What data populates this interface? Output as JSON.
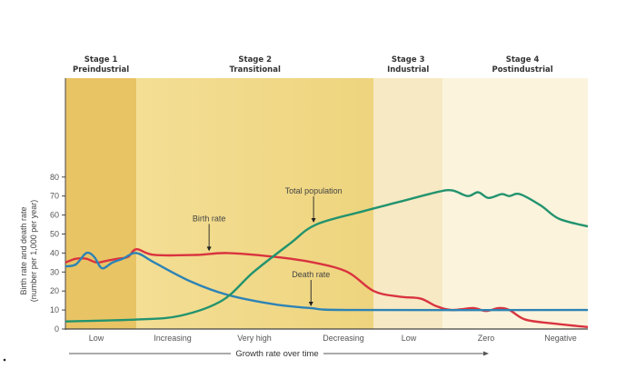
{
  "chart_data": {
    "type": "line",
    "title": "",
    "xlabel": "Growth rate over time",
    "ylabel": "Birth rate and death rate (number per 1,000 per year)",
    "ylim": [
      0,
      80
    ],
    "yticks": [
      0,
      10,
      20,
      30,
      40,
      50,
      60,
      70,
      80
    ],
    "grid": false,
    "stages": [
      {
        "title": "Stage 1",
        "name": "Preindustrial",
        "x_range": [
          0,
          13.6
        ],
        "color": "#e9c465"
      },
      {
        "title": "Stage 2",
        "name": "Transitional",
        "x_range": [
          13.6,
          59
        ],
        "color": "#f1da8c"
      },
      {
        "title": "Stage 3",
        "name": "Industrial",
        "x_range": [
          59,
          72.2
        ],
        "color": "#f6e9c3"
      },
      {
        "title": "Stage 4",
        "name": "Postindustrial",
        "x_range": [
          72.2,
          100
        ],
        "color": "#fbf3dc"
      }
    ],
    "categories": [
      "Low",
      "Increasing",
      "Very high",
      "Decreasing",
      "Low",
      "Zero",
      "Negative"
    ],
    "series": [
      {
        "name": "Birth rate",
        "color": "#d9333f",
        "points": [
          [
            0,
            35
          ],
          [
            2,
            37
          ],
          [
            4,
            37
          ],
          [
            6,
            35
          ],
          [
            8,
            36
          ],
          [
            10,
            37
          ],
          [
            12,
            38
          ],
          [
            13.6,
            42
          ],
          [
            17,
            39
          ],
          [
            25,
            39
          ],
          [
            31,
            40
          ],
          [
            40,
            38
          ],
          [
            47.5,
            35
          ],
          [
            54,
            30
          ],
          [
            59,
            20
          ],
          [
            64,
            17
          ],
          [
            68,
            16
          ],
          [
            71,
            12
          ],
          [
            74,
            10
          ],
          [
            78,
            11
          ],
          [
            80.5,
            9.5
          ],
          [
            83,
            11
          ],
          [
            85,
            10
          ],
          [
            88,
            5
          ],
          [
            93,
            3
          ],
          [
            100,
            1
          ]
        ]
      },
      {
        "name": "Death rate",
        "color": "#2e83b5",
        "points": [
          [
            0,
            33
          ],
          [
            2,
            34
          ],
          [
            4,
            40
          ],
          [
            5.5,
            38
          ],
          [
            7,
            32
          ],
          [
            9,
            35
          ],
          [
            11,
            37
          ],
          [
            13.6,
            40
          ],
          [
            17,
            35
          ],
          [
            24,
            25
          ],
          [
            31,
            18
          ],
          [
            40,
            13
          ],
          [
            47,
            11
          ],
          [
            55,
            10
          ],
          [
            100,
            10
          ]
        ]
      },
      {
        "name": "Total population",
        "color": "#22936e",
        "points": [
          [
            0,
            4
          ],
          [
            13.6,
            5
          ],
          [
            22,
            7
          ],
          [
            30,
            15
          ],
          [
            36,
            30
          ],
          [
            43,
            45
          ],
          [
            48,
            55
          ],
          [
            57,
            62
          ],
          [
            64,
            67
          ],
          [
            71,
            72
          ],
          [
            74,
            73
          ],
          [
            77,
            70
          ],
          [
            79,
            72
          ],
          [
            81,
            69
          ],
          [
            83.5,
            71
          ],
          [
            85,
            70
          ],
          [
            87,
            71
          ],
          [
            91,
            65
          ],
          [
            94.5,
            58
          ],
          [
            100,
            54
          ]
        ]
      }
    ],
    "annotations": [
      {
        "text": "Total population",
        "series": "Total population",
        "x": 47.5,
        "y": 55
      },
      {
        "text": "Birth rate",
        "series": "Birth rate",
        "x": 27.5,
        "y": 40
      },
      {
        "text": "Death rate",
        "series": "Death rate",
        "x": 47,
        "y": 11
      }
    ]
  }
}
